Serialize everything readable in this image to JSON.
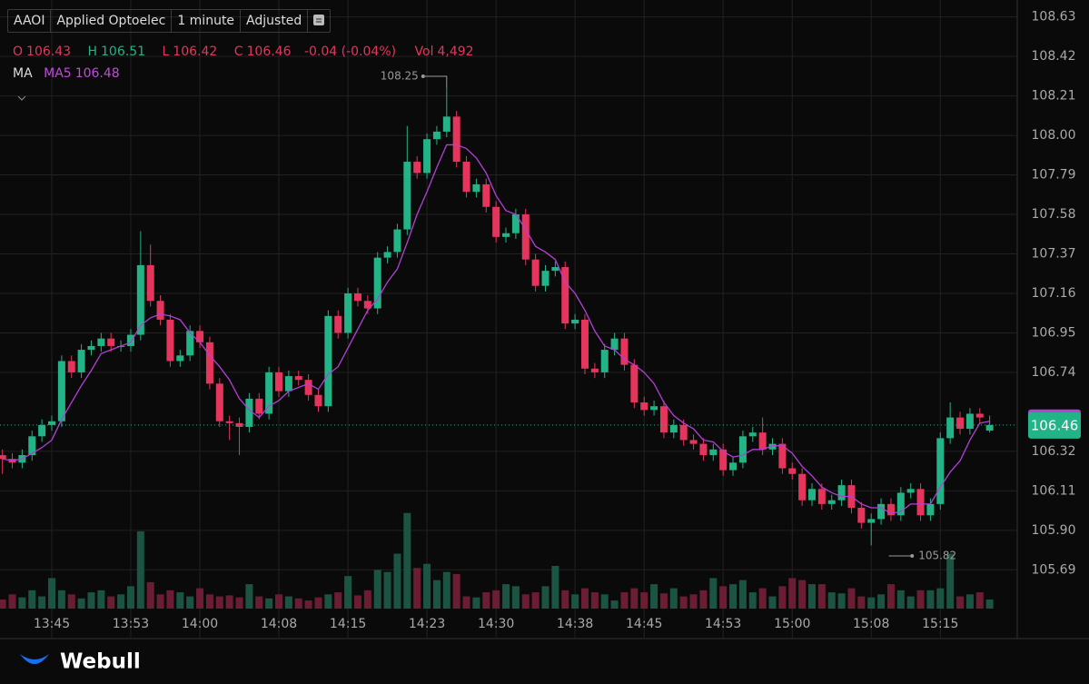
{
  "header": {
    "symbol": "AAOI",
    "name": "Applied Optoelec",
    "interval": "1 minute",
    "adjust": "Adjusted"
  },
  "footer": {
    "brand": "Webull"
  },
  "chart_data": {
    "type": "candlestick",
    "labels": {
      "open": "O",
      "high": "H",
      "low": "L",
      "close": "C",
      "volume": "Vol",
      "ma": "MA"
    },
    "change_label": "-0.04 (-0.04%)",
    "vol_label": "4,492",
    "categories": [
      null,
      null,
      null,
      null,
      null,
      "13:45",
      null,
      null,
      null,
      null,
      null,
      null,
      null,
      "13:53",
      null,
      null,
      null,
      null,
      null,
      null,
      "14:00",
      null,
      null,
      null,
      null,
      null,
      null,
      null,
      "14:08",
      null,
      null,
      null,
      null,
      null,
      null,
      "14:15",
      null,
      null,
      null,
      null,
      null,
      null,
      null,
      "14:23",
      null,
      null,
      null,
      null,
      null,
      null,
      "14:30",
      null,
      null,
      null,
      null,
      null,
      null,
      null,
      "14:38",
      null,
      null,
      null,
      null,
      null,
      null,
      "14:45",
      null,
      null,
      null,
      null,
      null,
      null,
      null,
      "14:53",
      null,
      null,
      null,
      null,
      null,
      null,
      "15:00",
      null,
      null,
      null,
      null,
      null,
      null,
      null,
      "15:08",
      null,
      null,
      null,
      null,
      null,
      null,
      "15:15",
      null,
      null,
      null,
      null,
      null
    ],
    "open": [
      106.3,
      106.28,
      106.26,
      106.3,
      106.4,
      106.46,
      106.48,
      106.8,
      106.74,
      106.86,
      106.88,
      106.92,
      106.88,
      106.88,
      106.94,
      107.31,
      107.12,
      107.02,
      106.8,
      106.83,
      106.96,
      106.9,
      106.68,
      106.48,
      106.47,
      106.45,
      106.6,
      106.52,
      106.74,
      106.64,
      106.72,
      106.7,
      106.62,
      106.56,
      107.04,
      106.95,
      107.16,
      107.12,
      107.08,
      107.35,
      107.38,
      107.5,
      107.86,
      107.8,
      107.98,
      108.02,
      108.1,
      107.86,
      107.7,
      107.74,
      107.62,
      107.46,
      107.48,
      107.58,
      107.34,
      107.2,
      107.28,
      107.3,
      107.0,
      107.02,
      106.76,
      106.74,
      106.86,
      106.92,
      106.78,
      106.58,
      106.54,
      106.56,
      106.42,
      106.46,
      106.38,
      106.36,
      106.3,
      106.33,
      106.22,
      106.26,
      106.4,
      106.42,
      106.33,
      106.36,
      106.23,
      106.2,
      106.06,
      106.12,
      106.04,
      106.06,
      106.14,
      106.02,
      105.94,
      105.96,
      106.04,
      105.98,
      106.1,
      106.12,
      105.98,
      106.04,
      106.39,
      106.5,
      106.44,
      106.52,
      106.43
    ],
    "high": [
      106.33,
      106.31,
      106.33,
      106.43,
      106.49,
      106.51,
      106.83,
      106.83,
      106.89,
      106.91,
      106.95,
      106.95,
      106.91,
      106.97,
      107.49,
      107.42,
      107.15,
      107.05,
      106.86,
      106.99,
      106.99,
      106.93,
      106.71,
      106.51,
      106.5,
      106.63,
      106.63,
      106.77,
      106.77,
      106.75,
      106.75,
      106.73,
      106.65,
      107.07,
      107.07,
      107.19,
      107.19,
      107.15,
      107.38,
      107.41,
      107.53,
      108.05,
      107.89,
      108.01,
      108.05,
      108.25,
      108.13,
      107.89,
      107.77,
      107.77,
      107.65,
      107.51,
      107.61,
      107.61,
      107.37,
      107.31,
      107.33,
      107.33,
      107.05,
      107.05,
      106.79,
      106.89,
      106.95,
      106.95,
      106.81,
      106.61,
      106.59,
      106.59,
      106.49,
      106.49,
      106.41,
      106.39,
      106.36,
      106.36,
      106.29,
      106.43,
      106.45,
      106.5,
      106.39,
      106.39,
      106.26,
      106.23,
      106.15,
      106.15,
      106.09,
      106.17,
      106.17,
      106.05,
      105.99,
      106.07,
      106.07,
      106.13,
      106.15,
      106.15,
      106.07,
      106.42,
      106.58,
      106.53,
      106.55,
      106.55,
      106.51
    ],
    "low": [
      106.2,
      106.23,
      106.23,
      106.27,
      106.37,
      106.43,
      106.45,
      106.71,
      106.71,
      106.83,
      106.85,
      106.85,
      106.85,
      106.85,
      106.91,
      107.09,
      106.99,
      106.77,
      106.77,
      106.8,
      106.87,
      106.65,
      106.45,
      106.38,
      106.3,
      106.42,
      106.49,
      106.49,
      106.61,
      106.61,
      106.67,
      106.59,
      106.53,
      106.53,
      106.92,
      106.92,
      107.09,
      107.05,
      107.05,
      107.32,
      107.35,
      107.47,
      107.77,
      107.77,
      107.95,
      107.99,
      107.83,
      107.67,
      107.67,
      107.59,
      107.43,
      107.43,
      107.45,
      107.31,
      107.17,
      107.17,
      107.25,
      106.97,
      106.97,
      106.73,
      106.71,
      106.71,
      106.83,
      106.75,
      106.55,
      106.51,
      106.51,
      106.39,
      106.39,
      106.35,
      106.33,
      106.27,
      106.27,
      106.19,
      106.19,
      106.23,
      106.37,
      106.3,
      106.3,
      106.2,
      106.17,
      106.03,
      106.03,
      106.01,
      106.01,
      106.03,
      105.99,
      105.91,
      105.82,
      105.93,
      105.95,
      105.95,
      106.07,
      105.95,
      105.95,
      106.01,
      106.36,
      106.41,
      106.41,
      106.47,
      106.42
    ],
    "close": [
      106.28,
      106.26,
      106.3,
      106.4,
      106.46,
      106.48,
      106.8,
      106.74,
      106.86,
      106.88,
      106.92,
      106.88,
      106.88,
      106.94,
      107.31,
      107.12,
      107.02,
      106.8,
      106.83,
      106.96,
      106.9,
      106.68,
      106.48,
      106.47,
      106.45,
      106.6,
      106.52,
      106.74,
      106.64,
      106.72,
      106.7,
      106.62,
      106.56,
      107.04,
      106.95,
      107.16,
      107.12,
      107.08,
      107.35,
      107.38,
      107.5,
      107.86,
      107.8,
      107.98,
      108.02,
      108.1,
      107.86,
      107.7,
      107.74,
      107.62,
      107.46,
      107.48,
      107.58,
      107.34,
      107.2,
      107.28,
      107.3,
      107.0,
      107.02,
      106.76,
      106.74,
      106.86,
      106.92,
      106.78,
      106.58,
      106.54,
      106.56,
      106.42,
      106.46,
      106.38,
      106.36,
      106.3,
      106.33,
      106.22,
      106.26,
      106.4,
      106.42,
      106.33,
      106.36,
      106.23,
      106.2,
      106.06,
      106.12,
      106.04,
      106.06,
      106.14,
      106.02,
      105.94,
      105.96,
      106.04,
      105.98,
      106.1,
      106.12,
      105.98,
      106.04,
      106.39,
      106.5,
      106.44,
      106.52,
      106.5,
      106.46
    ],
    "volume": [
      4500,
      7000,
      5500,
      9000,
      6000,
      15000,
      9000,
      7000,
      5000,
      8000,
      9000,
      6000,
      7000,
      11000,
      38000,
      13000,
      7000,
      9000,
      8000,
      6000,
      10000,
      7000,
      6000,
      6500,
      5500,
      12000,
      6000,
      5000,
      7000,
      6000,
      5000,
      4000,
      5500,
      7000,
      8000,
      16000,
      6500,
      9000,
      19000,
      18000,
      27000,
      47000,
      20000,
      22000,
      14000,
      18000,
      17000,
      6000,
      5500,
      8000,
      9000,
      12000,
      11000,
      7000,
      8000,
      11000,
      21000,
      9000,
      7000,
      10000,
      8000,
      7000,
      4000,
      8000,
      10000,
      8000,
      12000,
      7500,
      10000,
      6000,
      7000,
      9000,
      15000,
      11000,
      12000,
      14000,
      8000,
      10000,
      6000,
      11000,
      15000,
      14000,
      12000,
      12000,
      8000,
      7500,
      10000,
      6000,
      5500,
      7000,
      12000,
      9000,
      6000,
      9000,
      9000,
      10000,
      27000,
      6000,
      7000,
      8000,
      4492
    ],
    "ma": {
      "name": "MA5",
      "color": "#b43fd6",
      "values": [
        106.28,
        106.27,
        106.28,
        106.31,
        106.34,
        106.38,
        106.49,
        106.58,
        106.67,
        106.75,
        106.84,
        106.86,
        106.88,
        106.9,
        106.99,
        107.03,
        107.05,
        107.04,
        107.02,
        106.95,
        106.9,
        106.83,
        106.77,
        106.7,
        106.6,
        106.54,
        106.5,
        106.56,
        106.59,
        106.64,
        106.66,
        106.68,
        106.65,
        106.73,
        106.77,
        106.87,
        106.97,
        107.07,
        107.13,
        107.22,
        107.29,
        107.43,
        107.58,
        107.7,
        107.83,
        107.95,
        107.95,
        107.93,
        107.88,
        107.8,
        107.68,
        107.6,
        107.58,
        107.5,
        107.41,
        107.38,
        107.34,
        107.22,
        107.16,
        107.07,
        106.96,
        106.88,
        106.86,
        106.81,
        106.78,
        106.74,
        106.68,
        106.58,
        106.51,
        106.47,
        106.44,
        106.38,
        106.37,
        106.32,
        106.29,
        106.3,
        106.33,
        106.33,
        106.35,
        106.35,
        106.31,
        106.24,
        106.19,
        106.13,
        106.1,
        106.08,
        106.08,
        106.04,
        106.02,
        106.02,
        105.99,
        106.0,
        106.04,
        106.04,
        106.04,
        106.13,
        106.21,
        106.27,
        106.38,
        106.47,
        106.48
      ]
    },
    "up_color": "#22b386",
    "down_color": "#e5355d",
    "up_volume_color": "#1b5443",
    "down_volume_color": "#6a1d33",
    "ylim": [
      105.45,
      108.72
    ],
    "yticks": [
      108.63,
      108.42,
      108.21,
      {
        "value": 108.0,
        "label": "108.00"
      },
      107.79,
      107.58,
      107.37,
      107.16,
      106.95,
      106.74,
      106.32,
      106.11,
      {
        "value": 105.9,
        "label": "105.90"
      },
      105.69
    ],
    "y2lim": [
      0,
      50000
    ],
    "grid": true
  }
}
